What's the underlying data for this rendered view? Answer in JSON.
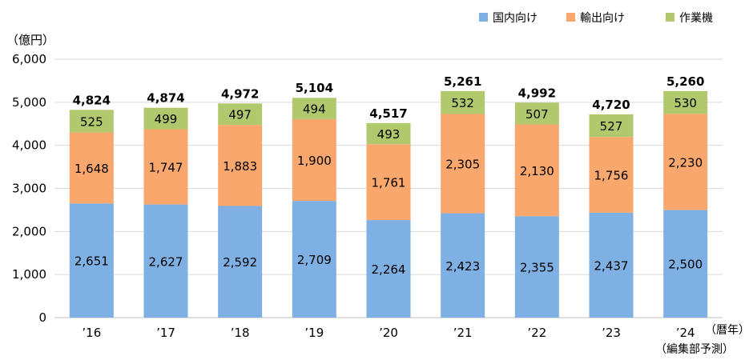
{
  "chart_data": {
    "type": "bar",
    "stacked": true,
    "ylabel": "（億円）",
    "xlabel": "（暦年）",
    "x_note": "（編集部予測）",
    "ylim": [
      0,
      6000
    ],
    "yticks": [
      0,
      1000,
      2000,
      3000,
      4000,
      5000,
      6000
    ],
    "ytick_labels": [
      "0",
      "1,000",
      "2,000",
      "3,000",
      "4,000",
      "5,000",
      "6,000"
    ],
    "grid": true,
    "legend_position": "top-right",
    "categories": [
      "’16",
      "’17",
      "’18",
      "’19",
      "’20",
      "’21",
      "’22",
      "’23",
      "’24"
    ],
    "series": [
      {
        "name": "国内向け",
        "color": "#7fb0e3",
        "values": [
          2651,
          2627,
          2592,
          2709,
          2264,
          2423,
          2355,
          2437,
          2500
        ],
        "labels": [
          "2,651",
          "2,627",
          "2,592",
          "2,709",
          "2,264",
          "2,423",
          "2,355",
          "2,437",
          "2,500"
        ]
      },
      {
        "name": "輸出向け",
        "color": "#f9a76d",
        "values": [
          1648,
          1747,
          1883,
          1900,
          1761,
          2305,
          2130,
          1756,
          2230
        ],
        "labels": [
          "1,648",
          "1,747",
          "1,883",
          "1,900",
          "1,761",
          "2,305",
          "2,130",
          "1,756",
          "2,230"
        ]
      },
      {
        "name": "作業機",
        "color": "#b2c86c",
        "values": [
          525,
          499,
          497,
          494,
          493,
          532,
          507,
          527,
          530
        ],
        "labels": [
          "525",
          "499",
          "497",
          "494",
          "493",
          "532",
          "507",
          "527",
          "530"
        ]
      }
    ],
    "totals": [
      4824,
      4874,
      4972,
      5104,
      4517,
      5261,
      4992,
      4720,
      5260
    ],
    "total_labels": [
      "4,824",
      "4,874",
      "4,972",
      "5,104",
      "4,517",
      "5,261",
      "4,992",
      "4,720",
      "5,260"
    ]
  }
}
